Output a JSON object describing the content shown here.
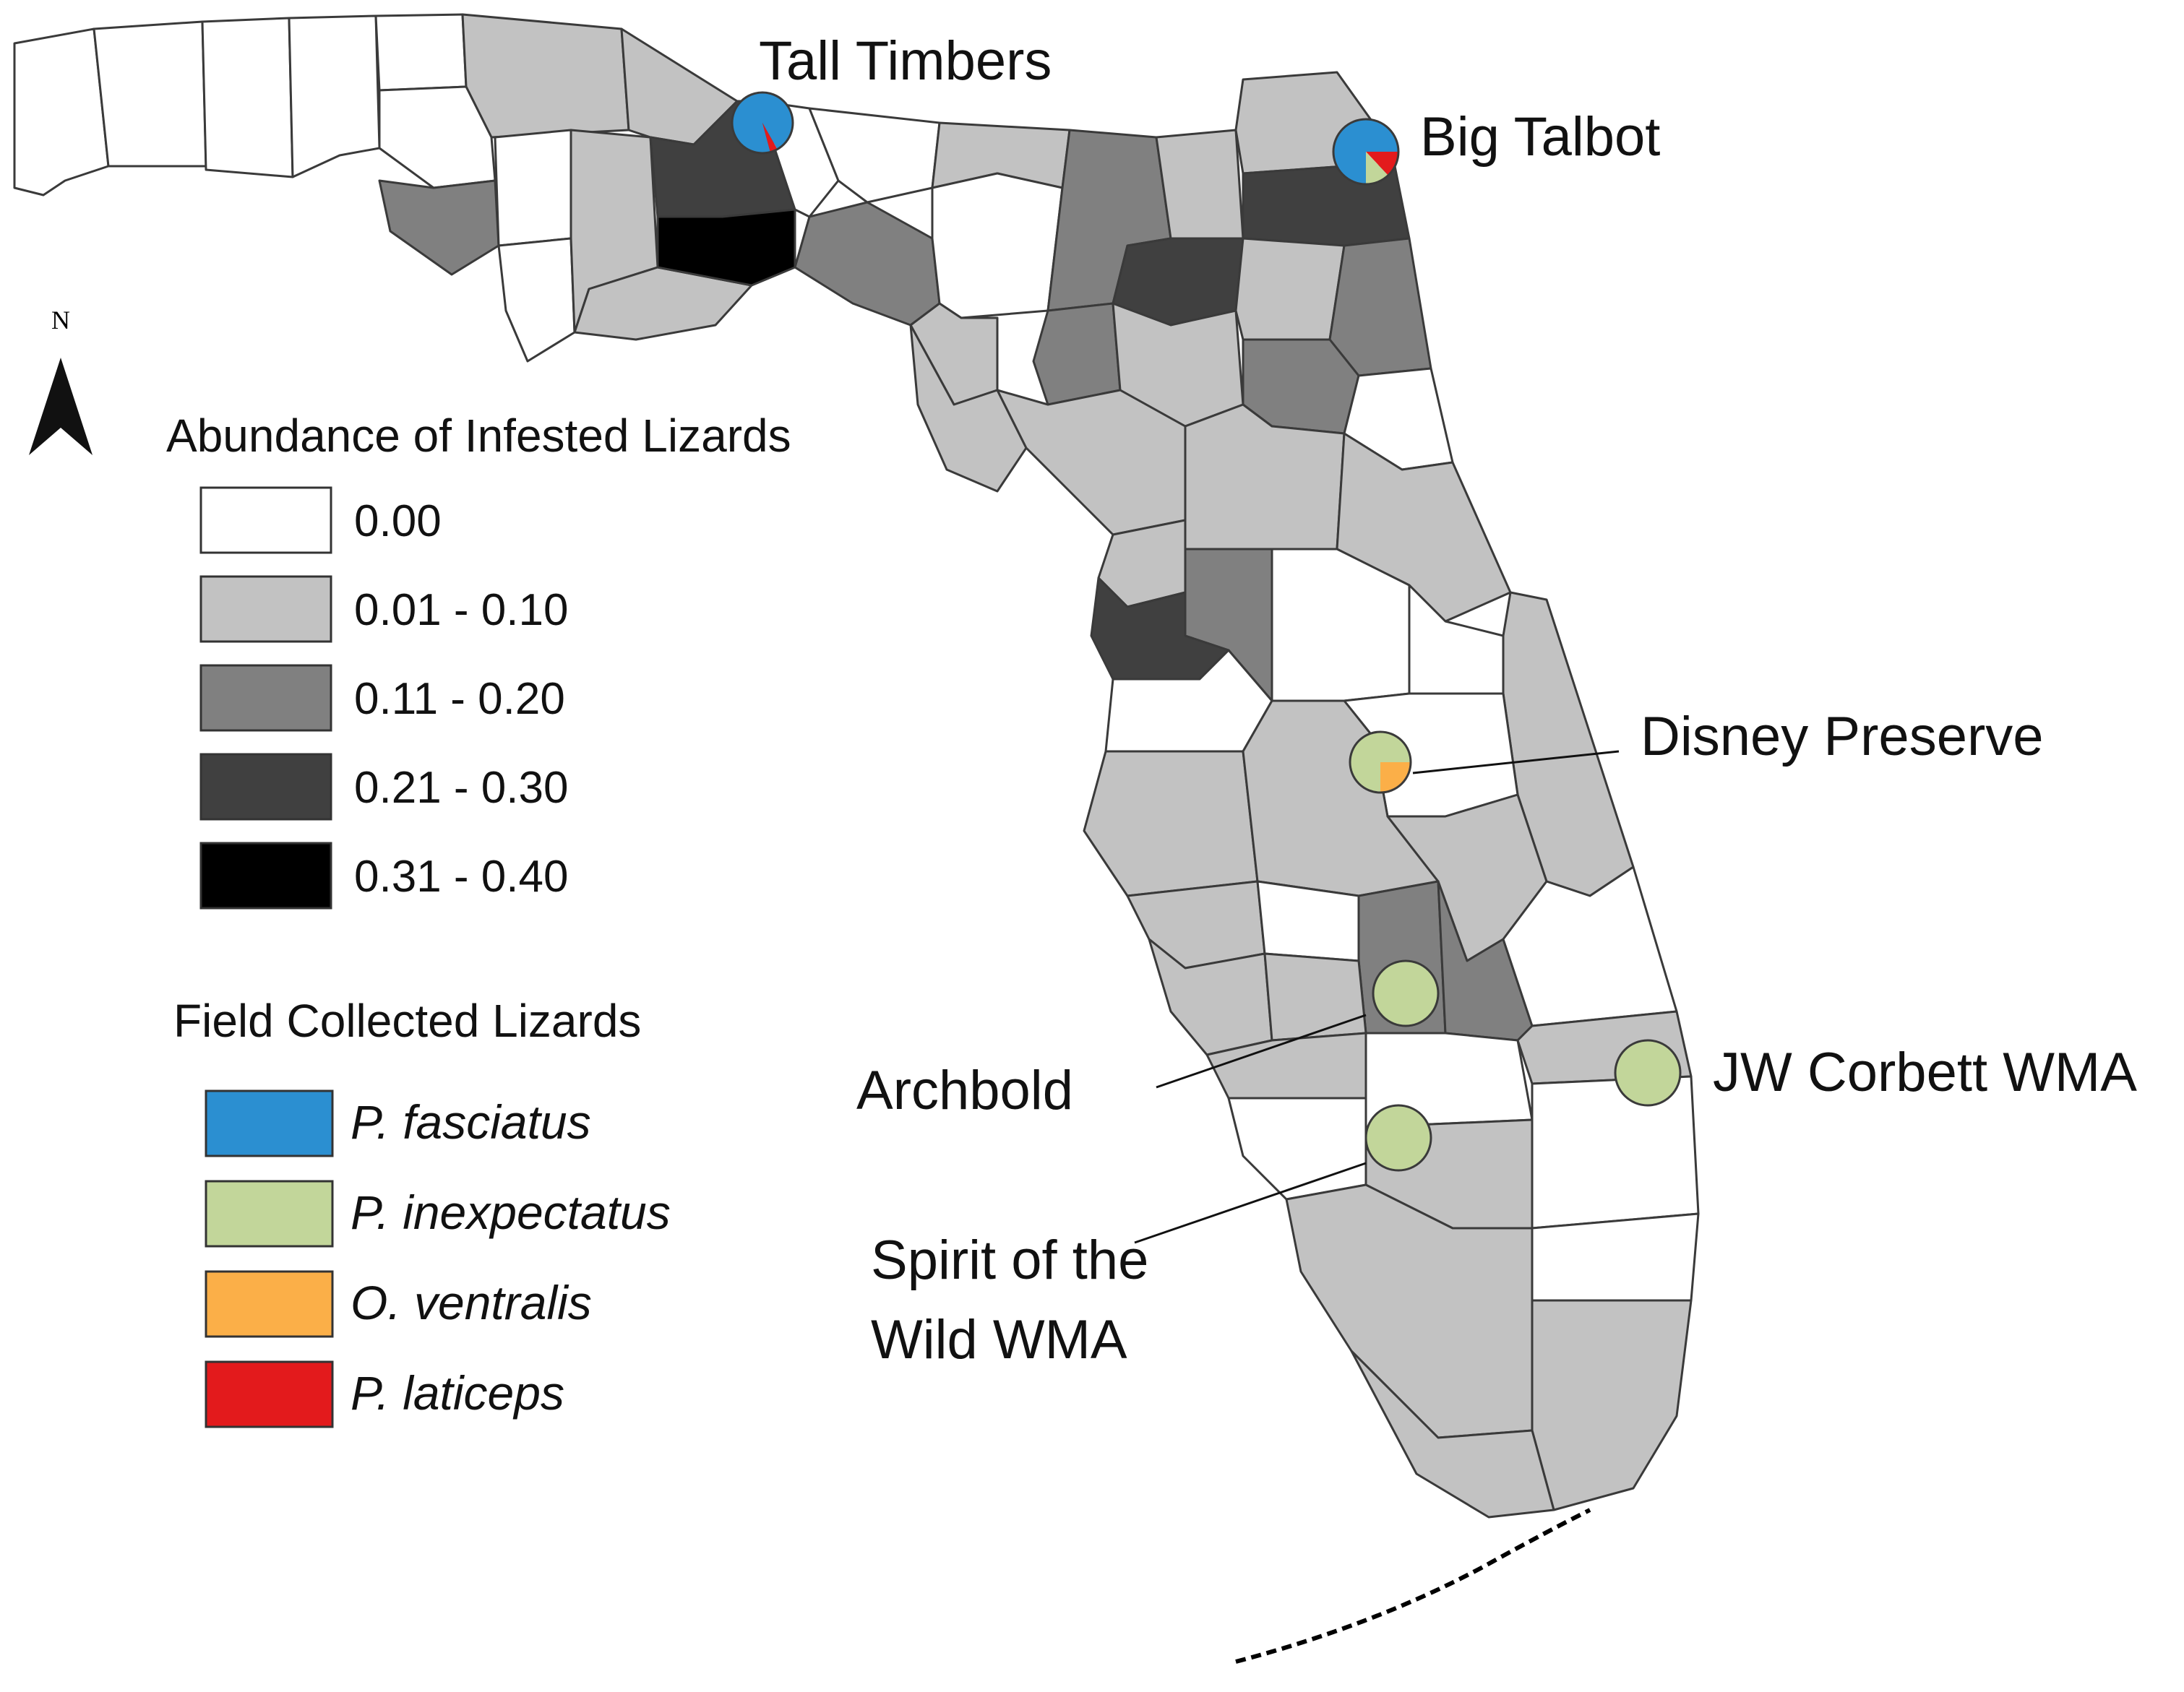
{
  "colors": {
    "abundance": [
      "#ffffff",
      "#c2c2c2",
      "#808080",
      "#404040",
      "#000000"
    ],
    "species": {
      "P. fasciatus": "#2b8fd1",
      "P. inexpectatus": "#c2d69a",
      "O. ventralis": "#fbaf48",
      "P. laticeps": "#e31a1c"
    }
  },
  "north_arrow": {
    "label": "N"
  },
  "legend_abundance": {
    "title": "Abundance of Infested Lizards",
    "classes": [
      {
        "label": "0.00",
        "level": 0
      },
      {
        "label": "0.01 - 0.10",
        "level": 1
      },
      {
        "label": "0.11 - 0.20",
        "level": 2
      },
      {
        "label": "0.21 - 0.30",
        "level": 3
      },
      {
        "label": "0.31 - 0.40",
        "level": 4
      }
    ]
  },
  "legend_species": {
    "title": "Field Collected Lizards",
    "items": [
      {
        "label": "P. fasciatus",
        "key": "P. fasciatus"
      },
      {
        "label": "P. inexpectatus",
        "key": "P. inexpectatus"
      },
      {
        "label": "O. ventralis",
        "key": "O. ventralis"
      },
      {
        "label": "P. laticeps",
        "key": "P. laticeps"
      }
    ]
  },
  "sites": [
    {
      "name": "Tall Timbers",
      "composition": [
        {
          "species": "P. fasciatus",
          "share": 0.96
        },
        {
          "species": "P. laticeps",
          "share": 0.04
        }
      ]
    },
    {
      "name": "Big Talbot",
      "composition": [
        {
          "species": "P. fasciatus",
          "share": 0.75
        },
        {
          "species": "P. laticeps",
          "share": 0.13
        },
        {
          "species": "P. inexpectatus",
          "share": 0.12
        }
      ]
    },
    {
      "name": "Disney Preserve",
      "composition": [
        {
          "species": "P. inexpectatus",
          "share": 0.75
        },
        {
          "species": "O. ventralis",
          "share": 0.25
        }
      ]
    },
    {
      "name": "Archbold",
      "composition": [
        {
          "species": "P. inexpectatus",
          "share": 1.0
        }
      ]
    },
    {
      "name": "JW Corbett WMA",
      "composition": [
        {
          "species": "P. inexpectatus",
          "share": 1.0
        }
      ]
    },
    {
      "name_lines": [
        "Spirit of the",
        "Wild WMA"
      ],
      "composition": [
        {
          "species": "P. inexpectatus",
          "share": 1.0
        }
      ]
    }
  ]
}
